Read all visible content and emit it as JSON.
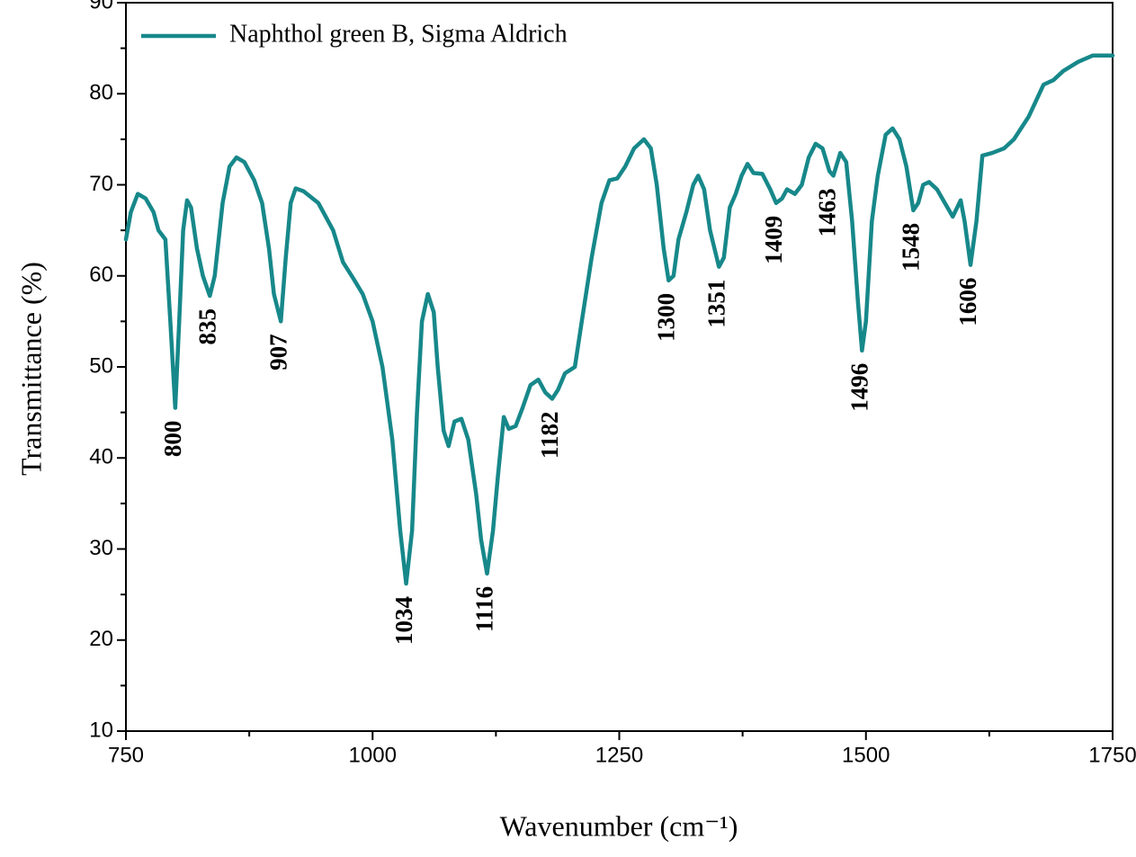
{
  "chart_data": {
    "type": "line",
    "x_label": "Wavenumber (cm⁻¹)",
    "y_label": "Transmittance (%)",
    "xlim": [
      750,
      1750
    ],
    "ylim": [
      10,
      90
    ],
    "xticks": [
      750,
      1000,
      1250,
      1500,
      1750
    ],
    "yticks": [
      10,
      20,
      30,
      40,
      50,
      60,
      70,
      80,
      90
    ],
    "legend": "upper left",
    "x": [
      750,
      755,
      762,
      770,
      778,
      783,
      790,
      795,
      800,
      804,
      808,
      812,
      816,
      822,
      828,
      835,
      840,
      848,
      855,
      862,
      870,
      880,
      888,
      895,
      900,
      907,
      912,
      917,
      922,
      930,
      945,
      960,
      970,
      980,
      990,
      1000,
      1010,
      1020,
      1028,
      1034,
      1040,
      1045,
      1050,
      1056,
      1062,
      1066,
      1072,
      1077,
      1083,
      1090,
      1097,
      1105,
      1110,
      1116,
      1122,
      1127,
      1133,
      1138,
      1145,
      1152,
      1160,
      1168,
      1175,
      1182,
      1188,
      1195,
      1205,
      1212,
      1222,
      1232,
      1240,
      1248,
      1256,
      1265,
      1275,
      1282,
      1288,
      1295,
      1300,
      1305,
      1310,
      1318,
      1325,
      1330,
      1336,
      1342,
      1351,
      1356,
      1362,
      1368,
      1374,
      1380,
      1386,
      1395,
      1403,
      1409,
      1415,
      1420,
      1428,
      1435,
      1442,
      1449,
      1456,
      1463,
      1467,
      1474,
      1480,
      1486,
      1492,
      1496,
      1500,
      1506,
      1512,
      1520,
      1527,
      1534,
      1541,
      1548,
      1553,
      1558,
      1564,
      1572,
      1580,
      1588,
      1596,
      1600,
      1606,
      1612,
      1618,
      1628,
      1640,
      1650,
      1665,
      1680,
      1690,
      1700,
      1715,
      1730,
      1740,
      1750
    ],
    "series": [
      {
        "name": "Naphthol green B, Sigma Aldrich",
        "color": "#17888a",
        "values": [
          64,
          67,
          69,
          68.5,
          67,
          65,
          64,
          55,
          45.5,
          55,
          65,
          68.3,
          67.5,
          63,
          60,
          57.8,
          60,
          68,
          72,
          73,
          72.5,
          70.5,
          68,
          63,
          58,
          55,
          62,
          68,
          69.6,
          69.3,
          68,
          65,
          61.5,
          59.8,
          58,
          55,
          50,
          42,
          32,
          26.2,
          32,
          45,
          55,
          58,
          56,
          50,
          43,
          41.3,
          44,
          44.3,
          42,
          36,
          31,
          27.3,
          32,
          38,
          44.5,
          43.2,
          43.5,
          45.5,
          48,
          48.6,
          47.2,
          46.5,
          47.5,
          49.3,
          50,
          55,
          62,
          68,
          70.5,
          70.7,
          72,
          74,
          75,
          74,
          70,
          63,
          59.5,
          60,
          64,
          67,
          70,
          71,
          69.5,
          65,
          61,
          62,
          67.5,
          69,
          71,
          72.3,
          71.3,
          71.2,
          69.5,
          68,
          68.5,
          69.5,
          69,
          70,
          73,
          74.5,
          74,
          71.5,
          71,
          73.5,
          72.5,
          66,
          57,
          51.8,
          55,
          66,
          71,
          75.5,
          76.2,
          75,
          72,
          67.2,
          68,
          70,
          70.3,
          69.5,
          68,
          66.5,
          68.3,
          66,
          61.2,
          66,
          73.2,
          73.5,
          74,
          75,
          77.5,
          81,
          81.5,
          82.5,
          83.5,
          84.2,
          84.2,
          84.2
        ]
      }
    ],
    "annotations": [
      {
        "text": "800",
        "x": 800,
        "y": 45.5
      },
      {
        "text": "835",
        "x": 835,
        "y": 57.8
      },
      {
        "text": "907",
        "x": 907,
        "y": 55
      },
      {
        "text": "1034",
        "x": 1034,
        "y": 26.2
      },
      {
        "text": "1116",
        "x": 1116,
        "y": 27.3
      },
      {
        "text": "1182",
        "x": 1182,
        "y": 46.5
      },
      {
        "text": "1300",
        "x": 1300,
        "y": 59.5
      },
      {
        "text": "1351",
        "x": 1351,
        "y": 61
      },
      {
        "text": "1409",
        "x": 1409,
        "y": 68
      },
      {
        "text": "1463",
        "x": 1463,
        "y": 71
      },
      {
        "text": "1496",
        "x": 1496,
        "y": 51.8
      },
      {
        "text": "1548",
        "x": 1548,
        "y": 67.2
      },
      {
        "text": "1606",
        "x": 1606,
        "y": 61.2
      }
    ]
  }
}
